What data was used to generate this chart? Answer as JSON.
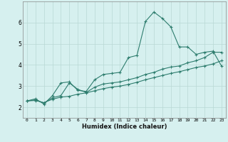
{
  "xlabel": "Humidex (Indice chaleur)",
  "bg_color": "#d6f0ef",
  "line_color": "#2e7d6e",
  "grid_color": "#b8d8d4",
  "xlim": [
    -0.5,
    23.5
  ],
  "ylim": [
    1.5,
    7.0
  ],
  "xticks": [
    0,
    1,
    2,
    3,
    4,
    5,
    6,
    7,
    8,
    9,
    10,
    11,
    12,
    13,
    14,
    15,
    16,
    17,
    18,
    19,
    20,
    21,
    22,
    23
  ],
  "yticks": [
    2,
    3,
    4,
    5,
    6
  ],
  "line1_x": [
    0,
    1,
    2,
    3,
    4,
    5,
    6,
    7,
    8,
    9,
    10,
    11,
    12,
    13,
    14,
    15,
    16,
    17,
    18,
    19,
    20,
    21,
    22,
    23
  ],
  "line1_y": [
    2.3,
    2.4,
    2.15,
    2.55,
    3.15,
    3.2,
    2.8,
    2.75,
    3.3,
    3.55,
    3.6,
    3.65,
    4.35,
    4.45,
    6.05,
    6.5,
    6.2,
    5.8,
    4.85,
    4.85,
    4.5,
    4.6,
    4.65,
    3.95
  ],
  "line2_x": [
    0,
    1,
    2,
    3,
    4,
    5,
    6,
    7,
    8,
    9,
    10,
    11,
    12,
    13,
    14,
    15,
    16,
    17,
    18,
    19,
    20,
    21,
    22,
    23
  ],
  "line2_y": [
    2.3,
    2.35,
    2.2,
    2.45,
    2.55,
    3.15,
    2.85,
    2.7,
    2.95,
    3.1,
    3.15,
    3.2,
    3.3,
    3.4,
    3.55,
    3.65,
    3.8,
    3.9,
    3.95,
    4.1,
    4.2,
    4.35,
    4.6,
    4.6
  ],
  "line3_x": [
    0,
    1,
    2,
    3,
    4,
    5,
    6,
    7,
    8,
    9,
    10,
    11,
    12,
    13,
    14,
    15,
    16,
    17,
    18,
    19,
    20,
    21,
    22,
    23
  ],
  "line3_y": [
    2.3,
    2.32,
    2.22,
    2.38,
    2.48,
    2.52,
    2.62,
    2.68,
    2.78,
    2.88,
    2.95,
    3.0,
    3.08,
    3.18,
    3.3,
    3.4,
    3.5,
    3.6,
    3.68,
    3.78,
    3.88,
    3.95,
    4.05,
    4.2
  ]
}
